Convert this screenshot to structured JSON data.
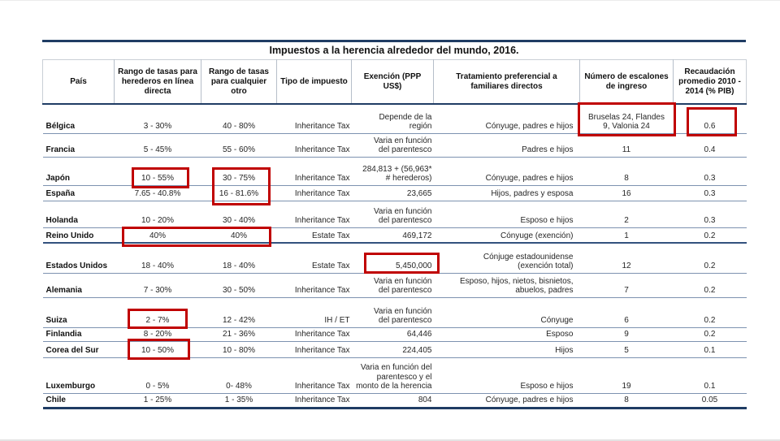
{
  "page": {
    "title": "Impuestos a la herencia alrededor del mundo, 2016."
  },
  "colors": {
    "rule_navy": "#1f3c64",
    "row_separator": "#7d92b0",
    "highlight_red": "#c00000"
  },
  "table": {
    "columns": [
      "País",
      "Rango de tasas para herederos en línea directa",
      "Rango de tasas para cualquier otro",
      "Tipo de impuesto",
      "Exención (PPP US$)",
      "Tratamiento preferencial  a familiares directos",
      "Número de escalones de ingreso",
      "Recaudación promedio 2010 - 2014 (% PIB)"
    ],
    "rows": [
      {
        "country": "Bélgica",
        "direct_rate": "3 - 30%",
        "other_rate": "40 - 80%",
        "tax_type": "Inheritance Tax",
        "exemption": "Depende de la\nregión",
        "preferential": "Cónyuge, padres e hijos",
        "brackets": "Bruselas 24, Flandes\n9, Valonia 24",
        "revenue": "0.6"
      },
      {
        "country": "Francia",
        "direct_rate": "5 - 45%",
        "other_rate": "55 - 60%",
        "tax_type": "Inheritance Tax",
        "exemption": "Varia en función\ndel parentesco",
        "preferential": "Padres e hijos",
        "brackets": "11",
        "revenue": "0.4"
      },
      {
        "country": "Japón",
        "direct_rate": "10 - 55%",
        "other_rate": "30 - 75%",
        "tax_type": "Inheritance Tax",
        "exemption": "284,813 + (56,963*\n# herederos)",
        "preferential": "Cónyuge, padres e hijos",
        "brackets": "8",
        "revenue": "0.3"
      },
      {
        "country": "España",
        "direct_rate": "7.65 - 40.8%",
        "other_rate": "16 - 81.6%",
        "tax_type": "Inheritance Tax",
        "exemption": "23,665",
        "preferential": "Hijos, padres y esposa",
        "brackets": "16",
        "revenue": "0.3"
      },
      {
        "country": "Holanda",
        "direct_rate": "10 - 20%",
        "other_rate": "30 - 40%",
        "tax_type": "Inheritance Tax",
        "exemption": "Varia en función\ndel parentesco",
        "preferential": "Esposo e hijos",
        "brackets": "2",
        "revenue": "0.3"
      },
      {
        "country": "Reino Unido",
        "direct_rate": "40%",
        "other_rate": "40%",
        "tax_type": "Estate Tax",
        "exemption": "469,172",
        "preferential": "Cónyuge (exención)",
        "brackets": "1",
        "revenue": "0.2"
      },
      {
        "country": "Estados Unidos",
        "direct_rate": "18 - 40%",
        "other_rate": "18 - 40%",
        "tax_type": "Estate Tax",
        "exemption": "5,450,000",
        "preferential": "Cónjuge estadounidense\n(exención total)",
        "brackets": "12",
        "revenue": "0.2"
      },
      {
        "country": "Alemania",
        "direct_rate": "7 - 30%",
        "other_rate": "30 - 50%",
        "tax_type": "Inheritance Tax",
        "exemption": "Varia en función\ndel parentesco",
        "preferential": "Esposo, hijos, nietos, bisnietos,\nabuelos, padres",
        "brackets": "7",
        "revenue": "0.2"
      },
      {
        "country": "Suiza",
        "direct_rate": "2 - 7%",
        "other_rate": "12 - 42%",
        "tax_type": "IH / ET",
        "exemption": "Varia en función\ndel parentesco",
        "preferential": "Cónyuge",
        "brackets": "6",
        "revenue": "0.2"
      },
      {
        "country": "Finlandia",
        "direct_rate": "8 - 20%",
        "other_rate": "21 - 36%",
        "tax_type": "Inheritance Tax",
        "exemption": "64,446",
        "preferential": "Esposo",
        "brackets": "9",
        "revenue": "0.2"
      },
      {
        "country": "Corea del Sur",
        "direct_rate": "10 - 50%",
        "other_rate": "10 - 80%",
        "tax_type": "Inheritance Tax",
        "exemption": "224,405",
        "preferential": "Hijos",
        "brackets": "5",
        "revenue": "0.1"
      },
      {
        "country": "Luxemburgo",
        "direct_rate": "0 - 5%",
        "other_rate": "0- 48%",
        "tax_type": "Inheritance Tax",
        "exemption": "Varia en función del\nparentesco y el\nmonto de la herencia",
        "preferential": "Esposo e hijos",
        "brackets": "19",
        "revenue": "0.1"
      },
      {
        "country": "Chile",
        "direct_rate": "1 - 25%",
        "other_rate": "1 - 35%",
        "tax_type": "Inheritance Tax",
        "exemption": "804",
        "preferential": "Cónyuge, padres e hijos",
        "brackets": "8",
        "revenue": "0.05"
      }
    ],
    "highlights": [
      {
        "row": "Bélgica",
        "column": "Número de escalones de ingreso",
        "value": "Bruselas 24, Flandes 9, Valonia 24"
      },
      {
        "row": "Bélgica",
        "column": "Recaudación promedio 2010 - 2014 (% PIB)",
        "value": "0.6"
      },
      {
        "row": "Japón",
        "column": "Rango de tasas para herederos en línea directa",
        "value": "10 - 55%"
      },
      {
        "row": "Japón y España",
        "column": "Rango de tasas para cualquier otro",
        "value": "30 - 75% / 16 - 81.6%"
      },
      {
        "row": "Reino Unido",
        "column": "Ambos rangos de tasas",
        "value": "40% / 40%"
      },
      {
        "row": "Estados Unidos",
        "column": "Exención (PPP US$)",
        "value": "5,450,000"
      },
      {
        "row": "Suiza",
        "column": "Rango de tasas para herederos en línea directa",
        "value": "2 - 7%"
      },
      {
        "row": "Corea del Sur",
        "column": "Rango de tasas para herederos en línea directa",
        "value": "10 - 50%"
      }
    ]
  }
}
